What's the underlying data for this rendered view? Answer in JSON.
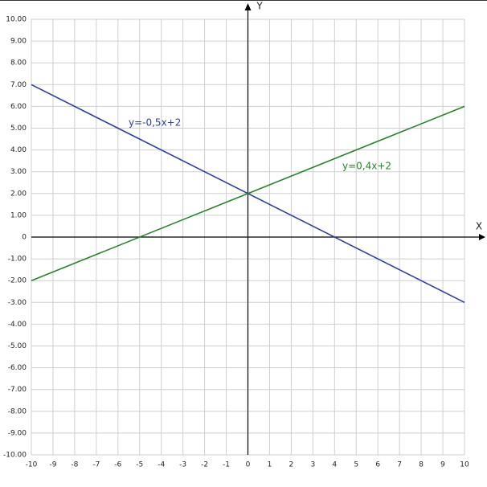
{
  "chart_data": {
    "type": "line",
    "x_label": "X",
    "y_label": "Y",
    "xlim": [
      -10,
      10
    ],
    "ylim": [
      -10,
      10
    ],
    "xticks": [
      -10,
      -9,
      -8,
      -7,
      -6,
      -5,
      -4,
      -3,
      -2,
      -1,
      0,
      1,
      2,
      3,
      4,
      5,
      6,
      7,
      8,
      9,
      10
    ],
    "yticks": [
      {
        "value": -10,
        "label": "-10.00"
      },
      {
        "value": -9,
        "label": "-9.00"
      },
      {
        "value": -8,
        "label": "-8.00"
      },
      {
        "value": -7,
        "label": "-7.00"
      },
      {
        "value": -6,
        "label": "-6.00"
      },
      {
        "value": -5,
        "label": "-5.00"
      },
      {
        "value": -4,
        "label": "-4.00"
      },
      {
        "value": -3,
        "label": "-3.00"
      },
      {
        "value": -2,
        "label": "-2.00"
      },
      {
        "value": -1,
        "label": "-1.00"
      },
      0,
      {
        "value": 1,
        "label": "1.00"
      },
      {
        "value": 2,
        "label": "2.00"
      },
      {
        "value": 3,
        "label": "3.00"
      },
      {
        "value": 4,
        "label": "4.00"
      },
      {
        "value": 5,
        "label": "5.00"
      },
      {
        "value": 6,
        "label": "6.00"
      },
      {
        "value": 7,
        "label": "7.00"
      },
      {
        "value": 8,
        "label": "8.00"
      },
      {
        "value": 9,
        "label": "9.00"
      },
      {
        "value": 10,
        "label": "10.00"
      }
    ],
    "grid": true,
    "series": [
      {
        "name": "y=-0,5x+2",
        "color": "#2b3fa6",
        "x": [
          -10,
          10
        ],
        "values": [
          7,
          -3
        ]
      },
      {
        "name": "y=0,4x+2",
        "color": "#23872a",
        "x": [
          -10,
          10
        ],
        "values": [
          -2,
          6
        ]
      }
    ]
  }
}
